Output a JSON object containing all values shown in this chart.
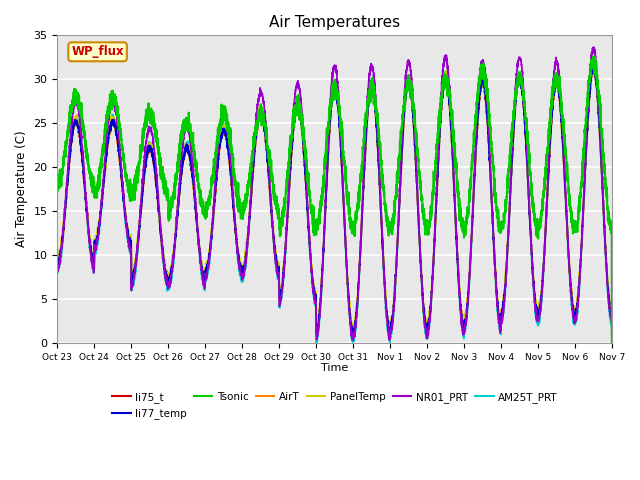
{
  "title": "Air Temperatures",
  "xlabel": "Time",
  "ylabel": "Air Temperature (C)",
  "ylim": [
    0,
    35
  ],
  "background_color": "#e8e8e8",
  "series": {
    "li75_t": {
      "color": "#cc0000",
      "lw": 1.2
    },
    "li77_temp": {
      "color": "#0000cc",
      "lw": 1.2
    },
    "Tsonic": {
      "color": "#00cc00",
      "lw": 1.5
    },
    "AirT": {
      "color": "#ff8800",
      "lw": 1.2
    },
    "PanelTemp": {
      "color": "#cccc00",
      "lw": 1.2
    },
    "NR01_PRT": {
      "color": "#9900cc",
      "lw": 1.2
    },
    "AM25T_PRT": {
      "color": "#00cccc",
      "lw": 1.2
    }
  },
  "xtick_labels": [
    "Oct 23",
    "Oct 24",
    "Oct 25",
    "Oct 26",
    "Oct 27",
    "Oct 28",
    "Oct 29",
    "Oct 30",
    "Oct 31",
    "Nov 1",
    "Nov 2",
    "Nov 3",
    "Nov 4",
    "Nov 5",
    "Nov 6",
    "Nov 7"
  ],
  "legend_box_text": "WP_flux",
  "legend_box_facecolor": "#ffffcc",
  "legend_box_edgecolor": "#cc8800",
  "legend_box_textcolor": "#cc0000",
  "day_max_base": [
    25,
    25,
    22,
    22,
    24,
    26,
    27,
    29,
    29,
    29.5,
    30,
    29.5,
    30,
    29.5,
    31
  ],
  "night_min_base": [
    9,
    11,
    7,
    7,
    8,
    8,
    5,
    1,
    1,
    1.5,
    1.5,
    2,
    3,
    3,
    3
  ],
  "tsonic_day_max": [
    28,
    28,
    26,
    25,
    26,
    26,
    27,
    29,
    29,
    29.5,
    30,
    31,
    30,
    30,
    32
  ],
  "tsonic_night_min": [
    18,
    17,
    17,
    15,
    15,
    15,
    13,
    13,
    13,
    13,
    13,
    13,
    13,
    13,
    13
  ]
}
